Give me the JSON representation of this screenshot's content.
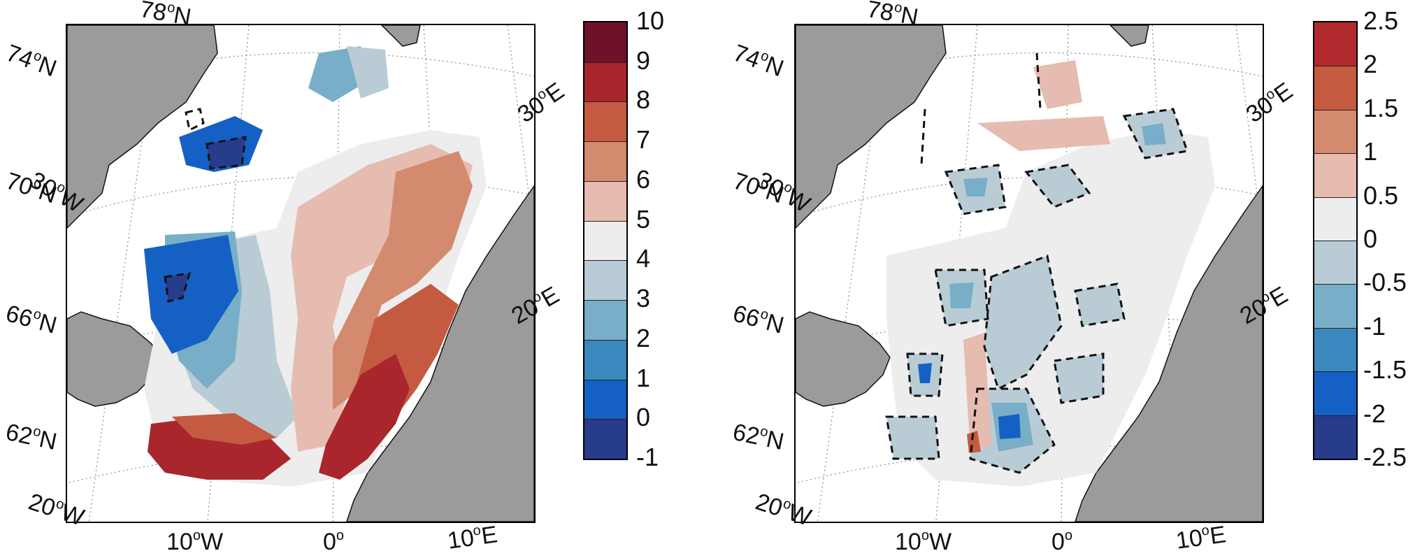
{
  "colors": {
    "land": "#9b9b9b",
    "coast": "#111111",
    "no_data": "#ffffff",
    "contour_dash": "#111111"
  },
  "panels": [
    {
      "id": "left",
      "map_labels": {
        "lat_78": "78°N",
        "lat_74": "74°N",
        "lat_70": "70°N",
        "lat_66": "66°N",
        "lat_62": "62°N",
        "lon_30w": "30°W",
        "lon_20w": "20°W",
        "lon_10w": "10°W",
        "lon_0": "0°",
        "lon_10e": "10°E",
        "lon_20e": "20°E",
        "lon_30e": "30°E"
      },
      "colorbar": {
        "ticks": [
          "10",
          "9",
          "8",
          "7",
          "6",
          "5",
          "4",
          "3",
          "2",
          "1",
          "0",
          "-1"
        ],
        "colors": [
          "#6f1128",
          "#a8262c",
          "#c45a3f",
          "#d48a6e",
          "#e6bbb0",
          "#ededed",
          "#b9ccd6",
          "#78aec8",
          "#3b88bf",
          "#1560c4",
          "#283c8c"
        ]
      }
    },
    {
      "id": "right",
      "map_labels": {
        "lat_78": "78°N",
        "lat_74": "74°N",
        "lat_70": "70°N",
        "lat_66": "66°N",
        "lat_62": "62°N",
        "lon_30w": "30°W",
        "lon_20w": "20°W",
        "lon_10w": "10°W",
        "lon_0": "0°",
        "lon_10e": "10°E",
        "lon_20e": "20°E",
        "lon_30e": "30°E"
      },
      "colorbar": {
        "ticks": [
          "2.5",
          "2",
          "1.5",
          "1",
          "0.5",
          "0",
          "-0.5",
          "-1",
          "-1.5",
          "-2",
          "-2.5"
        ],
        "colors": [
          "#b02a2e",
          "#c45a3f",
          "#d48a6e",
          "#e6bbb0",
          "#ededed",
          "#b9ccd6",
          "#78aec8",
          "#3b88bf",
          "#1560c4",
          "#283c8c"
        ]
      }
    }
  ]
}
